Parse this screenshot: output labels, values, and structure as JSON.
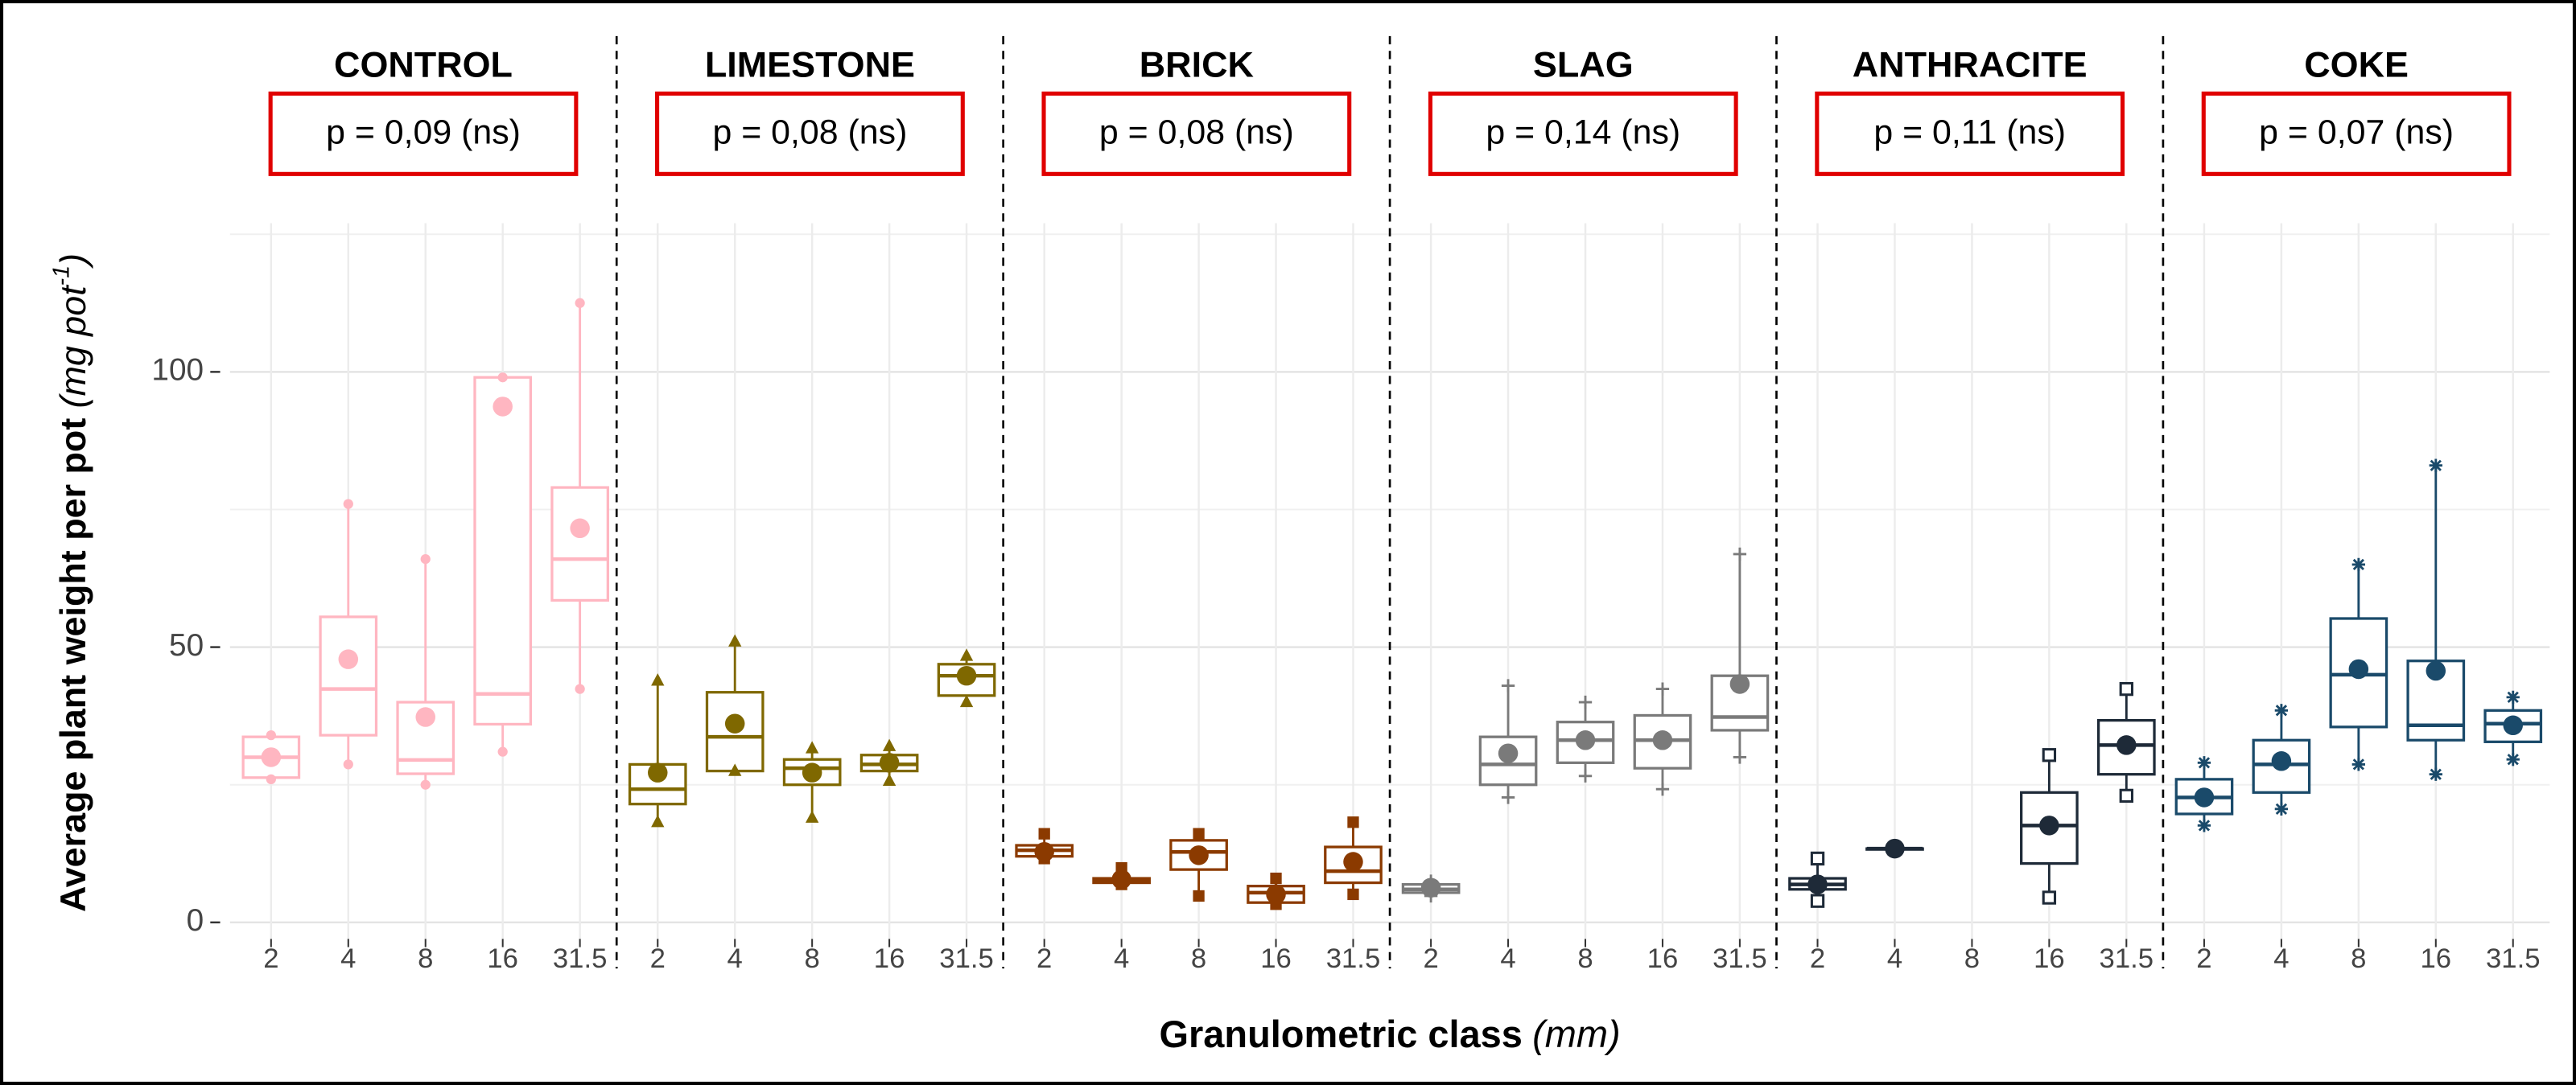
{
  "chart_data": {
    "type": "boxplot",
    "ylabel": "Average plant weight per pot",
    "ylabel_unit_open": "(mg pot",
    "ylabel_unit_exp": "-1",
    "ylabel_unit_close": ")",
    "xlabel": "Granulometric class",
    "xlabel_unit": "(mm)",
    "categories": [
      "2",
      "4",
      "8",
      "16",
      "31.5"
    ],
    "ylim": [
      -3,
      127
    ],
    "yticks": [
      0,
      50,
      100
    ],
    "y_minor_ticks": [
      25,
      75,
      125
    ],
    "grid": true,
    "facets": [
      {
        "name": "CONTROL",
        "p_label": "p = 0,09 (ns)",
        "color": "#ffb6c1",
        "marker": "circle",
        "boxes": [
          {
            "low": 26,
            "q1": 26.3,
            "median": 30,
            "q3": 33.7,
            "high": 34,
            "mean": 30
          },
          {
            "low": 28.7,
            "q1": 34,
            "median": 42.4,
            "q3": 55.5,
            "high": 76,
            "mean": 47.8
          },
          {
            "low": 25,
            "q1": 27,
            "median": 29.5,
            "q3": 40,
            "high": 66,
            "mean": 37.3
          },
          {
            "low": 31,
            "q1": 36,
            "median": 41.5,
            "q3": 99,
            "high": 99,
            "mean": 93.7
          },
          {
            "low": 42.4,
            "q1": 58.5,
            "median": 66,
            "q3": 79,
            "high": 112.5,
            "mean": 71.6
          }
        ]
      },
      {
        "name": "LIMESTONE",
        "p_label": "p = 0,08 (ns)",
        "color": "#7f6800",
        "marker": "triangle",
        "boxes": [
          {
            "low": 18.2,
            "q1": 21.5,
            "median": 24.2,
            "q3": 28.7,
            "high": 43.9,
            "mean": 27.2
          },
          {
            "low": 27.5,
            "q1": 27.5,
            "median": 33.7,
            "q3": 41.8,
            "high": 51,
            "mean": 36.1
          },
          {
            "low": 19,
            "q1": 25,
            "median": 28,
            "q3": 29.6,
            "high": 31.6,
            "mean": 27.2
          },
          {
            "low": 25.7,
            "q1": 27.5,
            "median": 28.7,
            "q3": 30.4,
            "high": 32,
            "mean": 29
          },
          {
            "low": 40,
            "q1": 41.2,
            "median": 44.8,
            "q3": 46.9,
            "high": 48.4,
            "mean": 44.8
          }
        ]
      },
      {
        "name": "BRICK",
        "p_label": "p = 0,08 (ns)",
        "color": "#8b3a00",
        "marker": "square",
        "boxes": [
          {
            "low": 11.6,
            "q1": 12,
            "median": 13.1,
            "q3": 14,
            "high": 16.1,
            "mean": 12.8
          },
          {
            "low": 6.9,
            "q1": 7.2,
            "median": 7.5,
            "q3": 8,
            "high": 9.9,
            "mean": 7.8
          },
          {
            "low": 4.8,
            "q1": 9.6,
            "median": 12.8,
            "q3": 14.9,
            "high": 16.1,
            "mean": 12.2
          },
          {
            "low": 3.3,
            "q1": 3.6,
            "median": 5.4,
            "q3": 6.6,
            "high": 8,
            "mean": 5.1
          },
          {
            "low": 5.1,
            "q1": 7.2,
            "median": 9.3,
            "q3": 13.7,
            "high": 18.2,
            "mean": 11
          }
        ]
      },
      {
        "name": "SLAG",
        "p_label": "p = 0,14 (ns)",
        "color": "#7a7a7a",
        "marker": "plus",
        "boxes": [
          {
            "low": 4.8,
            "q1": 5.4,
            "median": 6,
            "q3": 6.9,
            "high": 7.5,
            "mean": 6.3
          },
          {
            "low": 22.7,
            "q1": 25,
            "median": 28.7,
            "q3": 33.7,
            "high": 43,
            "mean": 30.7
          },
          {
            "low": 26.6,
            "q1": 29,
            "median": 33.1,
            "q3": 36.4,
            "high": 40,
            "mean": 33.1
          },
          {
            "low": 24.2,
            "q1": 28,
            "median": 33.1,
            "q3": 37.6,
            "high": 42.4,
            "mean": 33.1
          },
          {
            "low": 30,
            "q1": 34.9,
            "median": 37.3,
            "q3": 44.8,
            "high": 66.9,
            "mean": 43.3
          }
        ]
      },
      {
        "name": "ANTHRACITE",
        "p_label": "p = 0,11 (ns)",
        "color": "#1e2a38",
        "marker": "boxdot",
        "boxes": [
          {
            "low": 3.9,
            "q1": 6,
            "median": 6.9,
            "q3": 8,
            "high": 11.6,
            "mean": 6.9
          },
          {
            "low": 13.4,
            "q1": 13.4,
            "median": 13.4,
            "q3": 13.4,
            "high": 13.4,
            "mean": 13.4
          },
          null,
          {
            "low": 4.5,
            "q1": 10.7,
            "median": 17.6,
            "q3": 23.6,
            "high": 30.4,
            "mean": 17.6
          },
          {
            "low": 23,
            "q1": 26.9,
            "median": 32.2,
            "q3": 36.7,
            "high": 42.4,
            "mean": 32.2
          }
        ]
      },
      {
        "name": "COKE",
        "p_label": "p = 0,07 (ns)",
        "color": "#1a4a6a",
        "marker": "asterisk",
        "boxes": [
          {
            "low": 17.6,
            "q1": 19.7,
            "median": 22.7,
            "q3": 26,
            "high": 29,
            "mean": 22.7
          },
          {
            "low": 20.6,
            "q1": 23.6,
            "median": 28.7,
            "q3": 33.1,
            "high": 38.5,
            "mean": 29.3
          },
          {
            "low": 28.7,
            "q1": 35.5,
            "median": 45,
            "q3": 55.2,
            "high": 65,
            "mean": 46
          },
          {
            "low": 26.9,
            "q1": 33.1,
            "median": 35.8,
            "q3": 47.5,
            "high": 83,
            "mean": 45.7
          },
          {
            "low": 29.6,
            "q1": 32.8,
            "median": 36.1,
            "q3": 38.5,
            "high": 40.9,
            "mean": 35.8
          }
        ]
      }
    ]
  }
}
